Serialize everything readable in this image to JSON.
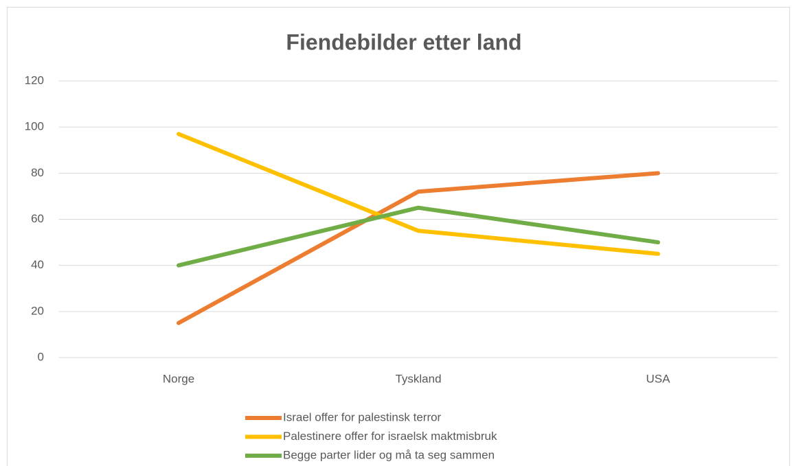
{
  "chart_data": {
    "type": "line",
    "title": "Fiendebilder etter land",
    "categories": [
      "Norge",
      "Tyskland",
      "USA"
    ],
    "series": [
      {
        "name": "Israel offer for palestinsk terror",
        "color": "#ed7d31",
        "values": [
          15,
          72,
          80
        ]
      },
      {
        "name": "Palestinere offer for israelsk maktmisbruk",
        "color": "#ffc000",
        "values": [
          97,
          55,
          45
        ]
      },
      {
        "name": "Begge parter lider og må ta seg sammen",
        "color": "#70ad47",
        "values": [
          40,
          65,
          50
        ]
      }
    ],
    "ylim": [
      0,
      120
    ],
    "yticks": [
      0,
      20,
      40,
      60,
      80,
      100,
      120
    ],
    "grid": true,
    "legend": "bottom"
  }
}
